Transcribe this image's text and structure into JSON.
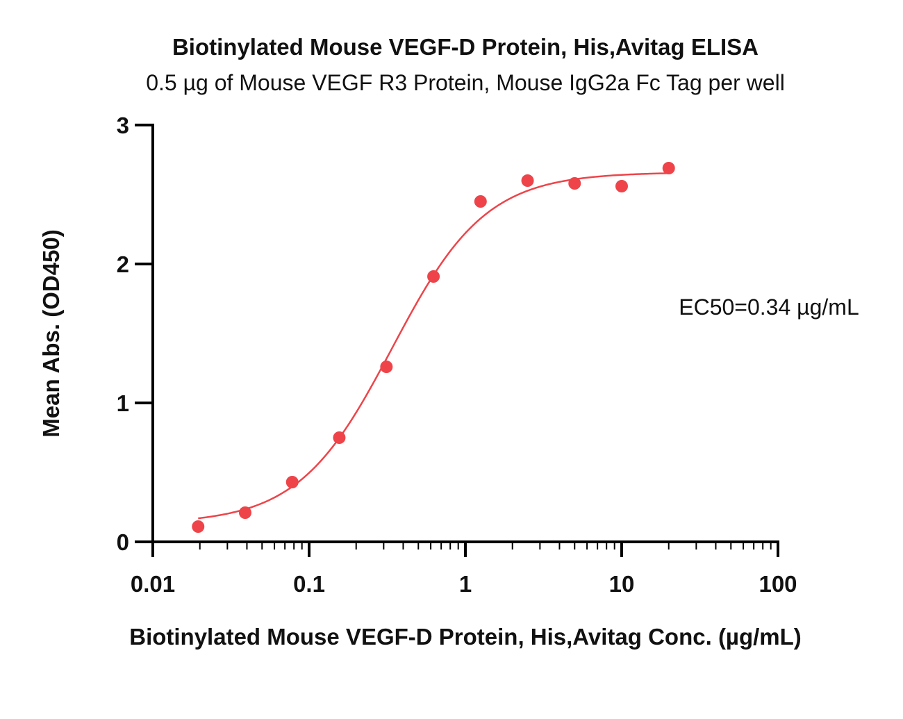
{
  "chart_data": {
    "type": "scatter",
    "title": "Biotinylated Mouse VEGF-D Protein, His,Avitag ELISA",
    "subtitle": "0.5 µg of Mouse VEGF R3 Protein, Mouse IgG2a Fc Tag per well",
    "xlabel": "Biotinylated Mouse VEGF-D Protein, His,Avitag Conc. (µg/mL)",
    "ylabel": "Mean Abs. (OD450)",
    "xscale": "log",
    "xlim": [
      0.01,
      100
    ],
    "ylim": [
      0,
      3
    ],
    "x_ticks": [
      "0.01",
      "0.1",
      "1",
      "10",
      "100"
    ],
    "y_ticks": [
      "0",
      "1",
      "2",
      "3"
    ],
    "grid": false,
    "annotation": "EC50=0.34 µg/mL",
    "colors": {
      "series": "#ee4449",
      "axis": "#000000"
    },
    "series": [
      {
        "x": [
          0.0195,
          0.039,
          0.078,
          0.156,
          0.3125,
          0.625,
          1.25,
          2.5,
          5,
          10,
          20
        ],
        "y": [
          0.11,
          0.21,
          0.43,
          0.75,
          1.26,
          1.91,
          2.45,
          2.6,
          2.58,
          2.56,
          2.69
        ]
      }
    ],
    "fit": {
      "model": "4PL",
      "bottom": 0.13,
      "top": 2.66,
      "ec50": 0.34,
      "hill": 1.45,
      "x_range": [
        0.0195,
        20
      ]
    }
  }
}
